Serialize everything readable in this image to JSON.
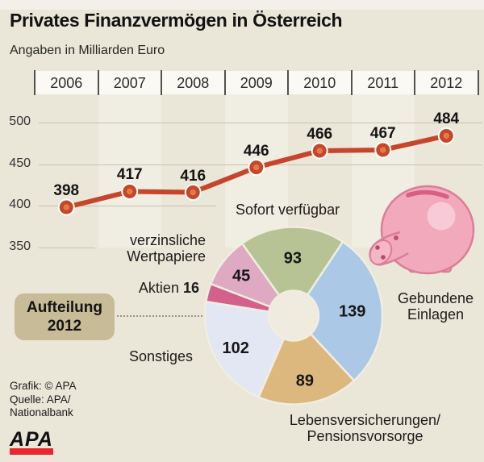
{
  "header": {
    "title": "Privates Finanzvermögen in Österreich",
    "subtitle": "Angaben in Milliarden Euro"
  },
  "chart_data": [
    {
      "type": "line",
      "title": "Privates Finanzvermögen in Österreich",
      "unit": "Milliarden Euro",
      "categories": [
        "2006",
        "2007",
        "2008",
        "2009",
        "2010",
        "2011",
        "2012"
      ],
      "values": [
        398,
        417,
        416,
        446,
        466,
        467,
        484
      ],
      "yticks": [
        500,
        450,
        400,
        350
      ],
      "ylim": [
        350,
        500
      ],
      "grid": true,
      "line_color": "#c5462b"
    },
    {
      "type": "pie",
      "donut": true,
      "title": "Aufteilung 2012",
      "total": 484,
      "start_angle_deg": -35.5,
      "segments": [
        {
          "label": "Sofort verfügbar",
          "value": 93,
          "color": "#b7c394"
        },
        {
          "label": "Gebundene Einlagen",
          "value": 139,
          "color": "#abc8e6"
        },
        {
          "label": "Lebensversicherungen/Pensionsvorsorge",
          "value": 89,
          "color": "#ddb87e"
        },
        {
          "label": "Sonstiges",
          "value": 102,
          "color": "#e3e7f3"
        },
        {
          "label": "Aktien",
          "value": 16,
          "color": "#d4618c"
        },
        {
          "label": "verzinsliche Wertpapiere",
          "value": 45,
          "color": "#dfa9c2"
        }
      ]
    }
  ],
  "badge": {
    "line1": "Aufteilung",
    "line2": "2012"
  },
  "pie_labels": {
    "sofort": "Sofort verfügbar",
    "wertpapiere_l1": "verzinsliche",
    "wertpapiere_l2": "Wertpapiere",
    "aktien_label": "Aktien",
    "aktien_value": "16",
    "sonstiges": "Sonstiges",
    "gebundene_l1": "Gebundene",
    "gebundene_l2": "Einlagen",
    "lebens_l1": "Lebensversicherungen/",
    "lebens_l2": "Pensionsvorsorge"
  },
  "credits": {
    "line1": "Grafik: © APA",
    "line2": "Quelle: APA/",
    "line3": "Nationalbank"
  },
  "logo_text": "APA",
  "colors": {
    "background": "#eae6d8",
    "line": "#c5462b",
    "point_center": "#e07b46",
    "grid": "#c7c3b3",
    "badge_bg": "#c8bb97",
    "year_box": "#faf9f3",
    "pig_body": "#f2a9bb",
    "pig_outline": "#d97e97",
    "logo_red": "#e8262c",
    "donut_hole": "#efecdf"
  }
}
